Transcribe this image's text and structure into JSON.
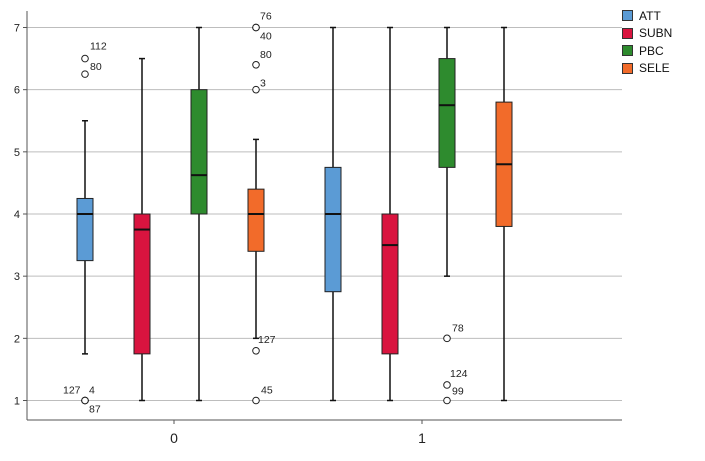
{
  "chart_data": {
    "type": "boxplot",
    "categories": [
      "0",
      "1"
    ],
    "ylim": [
      1,
      7
    ],
    "yticks": [
      1,
      2,
      3,
      4,
      5,
      6,
      7
    ],
    "grid": "horizontal",
    "legend_position": "top-right",
    "series": [
      {
        "name": "ATT",
        "color": "#5b9bd5",
        "boxes": [
          {
            "category": "0",
            "min": 1.75,
            "q1": 3.25,
            "median": 4.0,
            "q3": 4.25,
            "max": 5.5,
            "outliers": [
              {
                "value": 6.5,
                "label": "112"
              },
              {
                "value": 6.25,
                "label": "80"
              },
              {
                "value": 1.0,
                "label": "127"
              },
              {
                "value": 1.0,
                "label": "4"
              },
              {
                "value": 1.0,
                "label": "87"
              }
            ]
          },
          {
            "category": "1",
            "min": 1.0,
            "q1": 2.75,
            "median": 4.0,
            "q3": 4.75,
            "max": 7.0,
            "outliers": []
          }
        ]
      },
      {
        "name": "SUBN",
        "color": "#d9143f",
        "boxes": [
          {
            "category": "0",
            "min": 1.0,
            "q1": 1.75,
            "median": 3.75,
            "q3": 4.0,
            "max": 6.5,
            "outliers": []
          },
          {
            "category": "1",
            "min": 1.0,
            "q1": 1.75,
            "median": 3.5,
            "q3": 4.0,
            "max": 7.0,
            "outliers": []
          }
        ]
      },
      {
        "name": "PBC",
        "color": "#2e8b2e",
        "boxes": [
          {
            "category": "0",
            "min": 1.0,
            "q1": 4.0,
            "median": 4.625,
            "q3": 6.0,
            "max": 7.0,
            "outliers": []
          },
          {
            "category": "1",
            "min": 3.0,
            "q1": 4.75,
            "median": 5.75,
            "q3": 6.5,
            "max": 7.0,
            "outliers": [
              {
                "value": 2.0,
                "label": "78"
              },
              {
                "value": 1.25,
                "label": "124"
              },
              {
                "value": 1.0,
                "label": "99"
              }
            ]
          }
        ]
      },
      {
        "name": "SELE",
        "color": "#f26b2a",
        "boxes": [
          {
            "category": "0",
            "min": 2.0,
            "q1": 3.4,
            "median": 4.0,
            "q3": 4.4,
            "max": 5.2,
            "outliers": [
              {
                "value": 7.0,
                "label": "76"
              },
              {
                "value": 7.0,
                "label": "40"
              },
              {
                "value": 6.4,
                "label": "80"
              },
              {
                "value": 6.0,
                "label": "3"
              },
              {
                "value": 1.8,
                "label": "127"
              },
              {
                "value": 1.0,
                "label": "45"
              }
            ]
          },
          {
            "category": "1",
            "min": 1.0,
            "q1": 3.8,
            "median": 4.8,
            "q3": 5.8,
            "max": 7.0,
            "outliers": []
          }
        ]
      }
    ]
  }
}
